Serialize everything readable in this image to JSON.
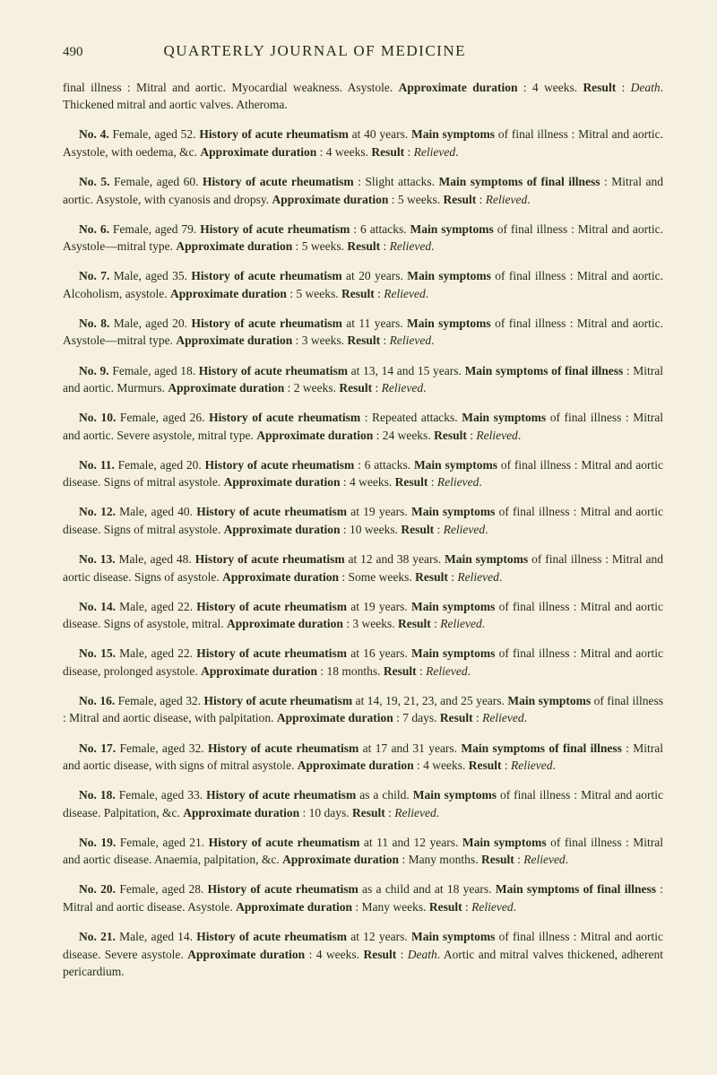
{
  "pageNumber": "490",
  "journalTitle": "QUARTERLY JOURNAL OF MEDICINE",
  "entries": [
    {
      "parts": [
        {
          "t": "final illness : Mitral and aortic. Myocardial weakness. Asystole. "
        },
        {
          "t": "Approximate duration",
          "b": true
        },
        {
          "t": " : 4 weeks. "
        },
        {
          "t": "Result",
          "b": true
        },
        {
          "t": " : "
        },
        {
          "t": "Death",
          "i": true
        },
        {
          "t": ". Thickened mitral and aortic valves. Atheroma."
        }
      ],
      "indent": false
    },
    {
      "parts": [
        {
          "t": "No. 4. ",
          "b": true
        },
        {
          "t": "Female, aged 52. "
        },
        {
          "t": "History of acute rheumatism",
          "b": true
        },
        {
          "t": " at 40 years. "
        },
        {
          "t": "Main symptoms",
          "b": true
        },
        {
          "t": " of final illness : Mitral and aortic. Asystole, with oedema, &c. "
        },
        {
          "t": "Approximate duration",
          "b": true
        },
        {
          "t": " : 4 weeks. "
        },
        {
          "t": "Result",
          "b": true
        },
        {
          "t": " : "
        },
        {
          "t": "Relieved",
          "i": true
        },
        {
          "t": "."
        }
      ],
      "indent": true
    },
    {
      "parts": [
        {
          "t": "No. 5. ",
          "b": true
        },
        {
          "t": "Female, aged 60. "
        },
        {
          "t": "History of acute rheumatism",
          "b": true
        },
        {
          "t": " : Slight attacks. "
        },
        {
          "t": "Main symptoms of final illness",
          "b": true
        },
        {
          "t": " : Mitral and aortic. Asystole, with cyanosis and dropsy. "
        },
        {
          "t": "Approximate duration",
          "b": true
        },
        {
          "t": " : 5 weeks. "
        },
        {
          "t": "Result",
          "b": true
        },
        {
          "t": " : "
        },
        {
          "t": "Relieved",
          "i": true
        },
        {
          "t": "."
        }
      ],
      "indent": true
    },
    {
      "parts": [
        {
          "t": "No. 6. ",
          "b": true
        },
        {
          "t": "Female, aged 79. "
        },
        {
          "t": "History of acute rheumatism",
          "b": true
        },
        {
          "t": " : 6 attacks. "
        },
        {
          "t": "Main symptoms",
          "b": true
        },
        {
          "t": " of final illness : Mitral and aortic. Asystole—mitral type. "
        },
        {
          "t": "Approximate duration",
          "b": true
        },
        {
          "t": " : 5 weeks. "
        },
        {
          "t": "Result",
          "b": true
        },
        {
          "t": " : "
        },
        {
          "t": "Relieved",
          "i": true
        },
        {
          "t": "."
        }
      ],
      "indent": true
    },
    {
      "parts": [
        {
          "t": "No. 7. ",
          "b": true
        },
        {
          "t": "Male, aged 35. "
        },
        {
          "t": "History of acute rheumatism",
          "b": true
        },
        {
          "t": " at 20 years. "
        },
        {
          "t": "Main symptoms",
          "b": true
        },
        {
          "t": " of final illness : Mitral and aortic. Alcoholism, asystole. "
        },
        {
          "t": "Approximate duration",
          "b": true
        },
        {
          "t": " : 5 weeks. "
        },
        {
          "t": "Result",
          "b": true
        },
        {
          "t": " : "
        },
        {
          "t": "Relieved",
          "i": true
        },
        {
          "t": "."
        }
      ],
      "indent": true
    },
    {
      "parts": [
        {
          "t": "No. 8. ",
          "b": true
        },
        {
          "t": "Male, aged 20. "
        },
        {
          "t": "History of acute rheumatism",
          "b": true
        },
        {
          "t": " at 11 years. "
        },
        {
          "t": "Main symptoms",
          "b": true
        },
        {
          "t": " of final illness : Mitral and aortic. Asystole—mitral type. "
        },
        {
          "t": "Approximate duration",
          "b": true
        },
        {
          "t": " : 3 weeks. "
        },
        {
          "t": "Result",
          "b": true
        },
        {
          "t": " : "
        },
        {
          "t": "Relieved",
          "i": true
        },
        {
          "t": "."
        }
      ],
      "indent": true
    },
    {
      "parts": [
        {
          "t": "No. 9. ",
          "b": true
        },
        {
          "t": "Female, aged 18. "
        },
        {
          "t": "History of acute rheumatism",
          "b": true
        },
        {
          "t": " at 13, 14 and 15 years. "
        },
        {
          "t": "Main symptoms of final illness",
          "b": true
        },
        {
          "t": " : Mitral and aortic. Murmurs. "
        },
        {
          "t": "Approximate duration",
          "b": true
        },
        {
          "t": " : 2 weeks. "
        },
        {
          "t": "Result",
          "b": true
        },
        {
          "t": " : "
        },
        {
          "t": "Relieved",
          "i": true
        },
        {
          "t": "."
        }
      ],
      "indent": true
    },
    {
      "parts": [
        {
          "t": "No. 10. ",
          "b": true
        },
        {
          "t": "Female, aged 26. "
        },
        {
          "t": "History of acute rheumatism",
          "b": true
        },
        {
          "t": " : Repeated attacks. "
        },
        {
          "t": "Main symptoms",
          "b": true
        },
        {
          "t": " of final illness : Mitral and aortic. Severe asystole, mitral type. "
        },
        {
          "t": "Approximate duration",
          "b": true
        },
        {
          "t": " : 24 weeks. "
        },
        {
          "t": "Result",
          "b": true
        },
        {
          "t": " : "
        },
        {
          "t": "Relieved",
          "i": true
        },
        {
          "t": "."
        }
      ],
      "indent": true
    },
    {
      "parts": [
        {
          "t": "No. 11. ",
          "b": true
        },
        {
          "t": "Female, aged 20. "
        },
        {
          "t": "History of acute rheumatism",
          "b": true
        },
        {
          "t": " : 6 attacks. "
        },
        {
          "t": "Main symptoms",
          "b": true
        },
        {
          "t": " of final illness : Mitral and aortic disease. Signs of mitral asystole. "
        },
        {
          "t": "Approximate duration",
          "b": true
        },
        {
          "t": " : 4 weeks. "
        },
        {
          "t": "Result",
          "b": true
        },
        {
          "t": " : "
        },
        {
          "t": "Relieved",
          "i": true
        },
        {
          "t": "."
        }
      ],
      "indent": true
    },
    {
      "parts": [
        {
          "t": "No. 12. ",
          "b": true
        },
        {
          "t": "Male, aged 40. "
        },
        {
          "t": "History of acute rheumatism",
          "b": true
        },
        {
          "t": " at 19 years. "
        },
        {
          "t": "Main symptoms",
          "b": true
        },
        {
          "t": " of final illness : Mitral and aortic disease. Signs of mitral asystole. "
        },
        {
          "t": "Approximate duration",
          "b": true
        },
        {
          "t": " : 10 weeks. "
        },
        {
          "t": "Result",
          "b": true
        },
        {
          "t": " : "
        },
        {
          "t": "Relieved",
          "i": true
        },
        {
          "t": "."
        }
      ],
      "indent": true
    },
    {
      "parts": [
        {
          "t": "No. 13. ",
          "b": true
        },
        {
          "t": "Male, aged 48. "
        },
        {
          "t": "History of acute rheumatism",
          "b": true
        },
        {
          "t": " at 12 and 38 years. "
        },
        {
          "t": "Main symptoms",
          "b": true
        },
        {
          "t": " of final illness : Mitral and aortic disease. Signs of asystole. "
        },
        {
          "t": "Approximate duration",
          "b": true
        },
        {
          "t": " : Some weeks. "
        },
        {
          "t": "Result",
          "b": true
        },
        {
          "t": " : "
        },
        {
          "t": "Relieved",
          "i": true
        },
        {
          "t": "."
        }
      ],
      "indent": true
    },
    {
      "parts": [
        {
          "t": "No. 14. ",
          "b": true
        },
        {
          "t": "Male, aged 22. "
        },
        {
          "t": "History of acute rheumatism",
          "b": true
        },
        {
          "t": " at 19 years. "
        },
        {
          "t": "Main symptoms",
          "b": true
        },
        {
          "t": " of final illness : Mitral and aortic disease. Signs of asystole, mitral. "
        },
        {
          "t": "Approximate duration",
          "b": true
        },
        {
          "t": " : 3 weeks. "
        },
        {
          "t": "Result",
          "b": true
        },
        {
          "t": " : "
        },
        {
          "t": "Relieved",
          "i": true
        },
        {
          "t": "."
        }
      ],
      "indent": true
    },
    {
      "parts": [
        {
          "t": "No. 15. ",
          "b": true
        },
        {
          "t": "Male, aged 22. "
        },
        {
          "t": "History of acute rheumatism",
          "b": true
        },
        {
          "t": " at 16 years. "
        },
        {
          "t": "Main symptoms",
          "b": true
        },
        {
          "t": " of final illness : Mitral and aortic disease, prolonged asystole. "
        },
        {
          "t": "Approximate duration",
          "b": true
        },
        {
          "t": " : 18 months. "
        },
        {
          "t": "Result",
          "b": true
        },
        {
          "t": " : "
        },
        {
          "t": "Relieved",
          "i": true
        },
        {
          "t": "."
        }
      ],
      "indent": true
    },
    {
      "parts": [
        {
          "t": "No. 16. ",
          "b": true
        },
        {
          "t": "Female, aged 32. "
        },
        {
          "t": "History of acute rheumatism",
          "b": true
        },
        {
          "t": " at 14, 19, 21, 23, and 25 years. "
        },
        {
          "t": "Main symptoms",
          "b": true
        },
        {
          "t": " of final illness : Mitral and aortic disease, with palpitation. "
        },
        {
          "t": "Approximate duration",
          "b": true
        },
        {
          "t": " : 7 days. "
        },
        {
          "t": "Result",
          "b": true
        },
        {
          "t": " : "
        },
        {
          "t": "Relieved",
          "i": true
        },
        {
          "t": "."
        }
      ],
      "indent": true
    },
    {
      "parts": [
        {
          "t": "No. 17. ",
          "b": true
        },
        {
          "t": "Female, aged 32. "
        },
        {
          "t": "History of acute rheumatism",
          "b": true
        },
        {
          "t": " at 17 and 31 years. "
        },
        {
          "t": "Main symptoms of final illness",
          "b": true
        },
        {
          "t": " : Mitral and aortic disease, with signs of mitral asystole. "
        },
        {
          "t": "Approximate duration",
          "b": true
        },
        {
          "t": " : 4 weeks. "
        },
        {
          "t": "Result",
          "b": true
        },
        {
          "t": " : "
        },
        {
          "t": "Relieved",
          "i": true
        },
        {
          "t": "."
        }
      ],
      "indent": true
    },
    {
      "parts": [
        {
          "t": "No. 18. ",
          "b": true
        },
        {
          "t": "Female, aged 33. "
        },
        {
          "t": "History of acute rheumatism",
          "b": true
        },
        {
          "t": " as a child. "
        },
        {
          "t": "Main symptoms",
          "b": true
        },
        {
          "t": " of final illness : Mitral and aortic disease. Palpitation, &c. "
        },
        {
          "t": "Approximate duration",
          "b": true
        },
        {
          "t": " : 10 days. "
        },
        {
          "t": "Result",
          "b": true
        },
        {
          "t": " : "
        },
        {
          "t": "Relieved",
          "i": true
        },
        {
          "t": "."
        }
      ],
      "indent": true
    },
    {
      "parts": [
        {
          "t": "No. 19. ",
          "b": true
        },
        {
          "t": "Female, aged 21. "
        },
        {
          "t": "History of acute rheumatism",
          "b": true
        },
        {
          "t": " at 11 and 12 years. "
        },
        {
          "t": "Main symptoms",
          "b": true
        },
        {
          "t": " of final illness : Mitral and aortic disease. Anaemia, palpitation, &c. "
        },
        {
          "t": "Approximate duration",
          "b": true
        },
        {
          "t": " : Many months. "
        },
        {
          "t": "Result",
          "b": true
        },
        {
          "t": " : "
        },
        {
          "t": "Relieved",
          "i": true
        },
        {
          "t": "."
        }
      ],
      "indent": true
    },
    {
      "parts": [
        {
          "t": "No. 20. ",
          "b": true
        },
        {
          "t": "Female, aged 28. "
        },
        {
          "t": "History of acute rheumatism",
          "b": true
        },
        {
          "t": " as a child and at 18 years. "
        },
        {
          "t": "Main symptoms of final illness",
          "b": true
        },
        {
          "t": " : Mitral and aortic disease. Asystole. "
        },
        {
          "t": "Approximate duration",
          "b": true
        },
        {
          "t": " : Many weeks. "
        },
        {
          "t": "Result",
          "b": true
        },
        {
          "t": " : "
        },
        {
          "t": "Relieved",
          "i": true
        },
        {
          "t": "."
        }
      ],
      "indent": true
    },
    {
      "parts": [
        {
          "t": "No. 21. ",
          "b": true
        },
        {
          "t": "Male, aged 14. "
        },
        {
          "t": "History of acute rheumatism",
          "b": true
        },
        {
          "t": " at 12 years. "
        },
        {
          "t": "Main symptoms",
          "b": true
        },
        {
          "t": " of final illness : Mitral and aortic disease. Severe asystole. "
        },
        {
          "t": "Approximate duration",
          "b": true
        },
        {
          "t": " : 4 weeks. "
        },
        {
          "t": "Result",
          "b": true
        },
        {
          "t": " : "
        },
        {
          "t": "Death",
          "i": true
        },
        {
          "t": ". Aortic and mitral valves thickened, adherent pericardium."
        }
      ],
      "indent": true
    }
  ]
}
